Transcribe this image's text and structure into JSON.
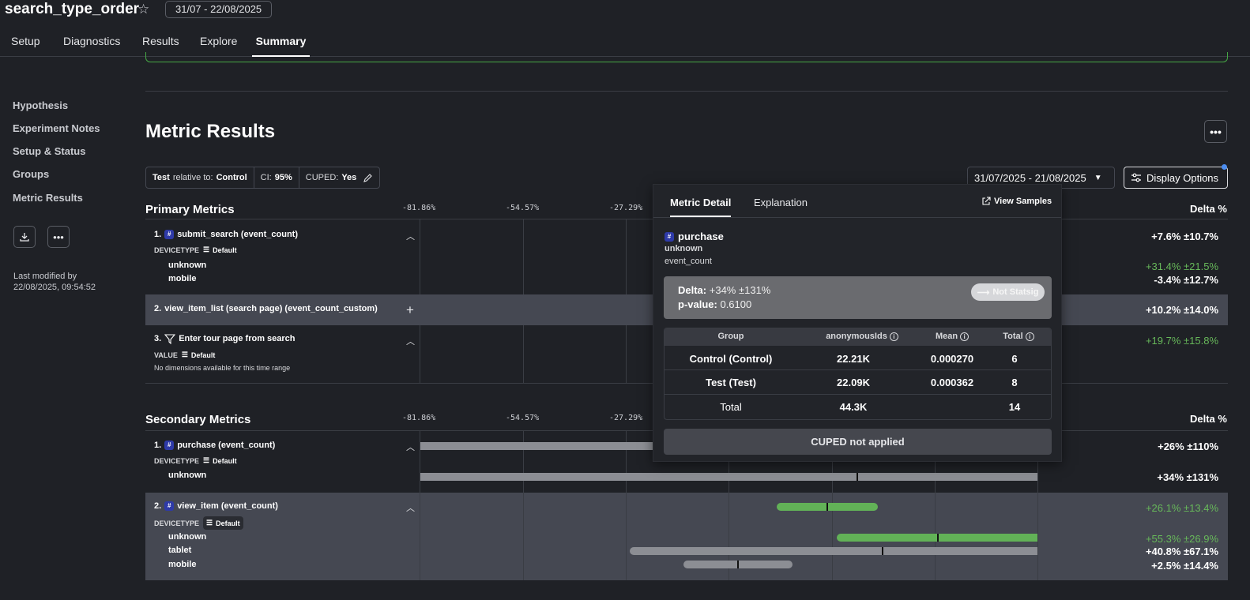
{
  "header": {
    "title": "search_type_order",
    "date_badge": "31/07 - 22/08/2025",
    "tabs": [
      "Setup",
      "Diagnostics",
      "Results",
      "Explore",
      "Summary"
    ],
    "active_tab": "Summary"
  },
  "sidebar": {
    "items": [
      "Hypothesis",
      "Experiment Notes",
      "Setup & Status",
      "Groups",
      "Metric Results"
    ],
    "last_modified_label": "Last modified by",
    "last_modified_time": "22/08/2025, 09:54:52"
  },
  "metric_results": {
    "title": "Metric Results",
    "settings": {
      "test": "Test",
      "relative_to_text": "relative to:",
      "control": "Control",
      "ci_label": "CI:",
      "ci_value": "95%",
      "cuped_label": "CUPED:",
      "cuped_value": "Yes"
    },
    "date_range": "31/07/2025 - 21/08/2025",
    "display_options": "Display Options",
    "delta_header": "Delta %",
    "axis_ticks": [
      "-81.86%",
      "-54.57%",
      "-27.29%"
    ]
  },
  "primary": {
    "title": "Primary Metrics",
    "metrics": [
      {
        "num": "1.",
        "name": "submit_search (event_count)",
        "dim_label": "DEVICETYPE",
        "dim_default": "Default",
        "delta": "+7.6% ±10.7%",
        "dims": [
          {
            "name": "unknown",
            "delta": "+31.4% ±21.5%"
          },
          {
            "name": "mobile",
            "delta": "-3.4% ±12.7%"
          }
        ]
      },
      {
        "num": "2.",
        "name": "view_item_list (search page) (event_count_custom)",
        "delta": "+10.2% ±14.0%"
      },
      {
        "num": "3.",
        "name": "Enter tour page from search",
        "dim_label": "VALUE",
        "dim_default": "Default",
        "no_dims": "No dimensions available for this time range",
        "delta": "+19.7% ±15.8%"
      }
    ]
  },
  "secondary": {
    "title": "Secondary Metrics",
    "metrics": [
      {
        "num": "1.",
        "name": "purchase (event_count)",
        "dim_label": "DEVICETYPE",
        "dim_default": "Default",
        "delta": "+26% ±110%",
        "dims": [
          {
            "name": "unknown",
            "delta": "+34% ±131%"
          }
        ]
      },
      {
        "num": "2.",
        "name": "view_item (event_count)",
        "dim_label": "DEVICETYPE",
        "dim_default": "Default",
        "delta": "+26.1% ±13.4%",
        "dims": [
          {
            "name": "unknown",
            "delta": "+55.3% ±26.9%"
          },
          {
            "name": "tablet",
            "delta": "+40.8% ±67.1%"
          },
          {
            "name": "mobile",
            "delta": "+2.5% ±14.4%"
          }
        ]
      }
    ]
  },
  "popup": {
    "tabs": [
      "Metric Detail",
      "Explanation"
    ],
    "view_samples": "View Samples",
    "metric_name": "purchase",
    "dimension": "unknown",
    "metric_type": "event_count",
    "delta_label": "Delta:",
    "delta_value": "+34% ±131%",
    "pvalue_label": "p-value:",
    "pvalue_value": "0.6100",
    "badge": "Not Statsig",
    "table": {
      "headers": [
        "Group",
        "anonymousIds",
        "Mean",
        "Total"
      ],
      "rows": [
        [
          "Control (Control)",
          "22.21K",
          "0.000270",
          "6"
        ],
        [
          "Test (Test)",
          "22.09K",
          "0.000362",
          "8"
        ],
        [
          "Total",
          "44.3K",
          "",
          "14"
        ]
      ]
    },
    "cuped": "CUPED not applied"
  },
  "colors": {
    "positive": "#67b85a",
    "accent_blue": "#4c8df0",
    "banner_green": "#46a845"
  }
}
